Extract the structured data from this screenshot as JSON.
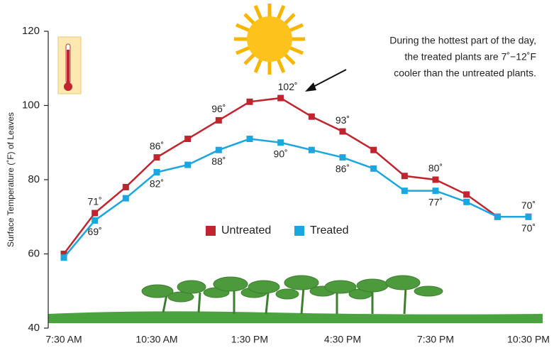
{
  "chart_data": {
    "type": "line",
    "ylabel": "Surface Temperature (˚F) of Leaves",
    "annotation": [
      "During the hottest part of the day,",
      "the treated plants are 7˚−12˚F",
      "cooler than the untreated plants."
    ],
    "categories": [
      "7:30 AM",
      null,
      null,
      "10:30 AM",
      null,
      null,
      "1:30 PM",
      null,
      null,
      "4:30 PM",
      null,
      null,
      "7:30 PM",
      null,
      null,
      "10:30 PM"
    ],
    "series": [
      {
        "name": "Untreated",
        "color": "#c1232f",
        "values": [
          60,
          71,
          78,
          86,
          91,
          96,
          101,
          102,
          97,
          93,
          88,
          81,
          80,
          76,
          70,
          70
        ],
        "value_labels": [
          null,
          "71˚",
          null,
          "86˚",
          null,
          "96˚",
          null,
          "102˚",
          null,
          "93˚",
          null,
          null,
          "80˚",
          null,
          null,
          "70˚"
        ]
      },
      {
        "name": "Treated",
        "color": "#1ba6e0",
        "values": [
          59,
          69,
          75,
          82,
          84,
          88,
          91,
          90,
          88,
          86,
          83,
          77,
          77,
          74,
          70,
          70
        ],
        "value_labels": [
          null,
          "69˚",
          null,
          "82˚",
          null,
          "88˚",
          null,
          "90˚",
          null,
          "86˚",
          null,
          null,
          "77˚",
          null,
          null,
          "70˚"
        ]
      }
    ],
    "ylim": [
      40,
      120
    ],
    "yticks": [
      40,
      60,
      80,
      100,
      120
    ]
  }
}
